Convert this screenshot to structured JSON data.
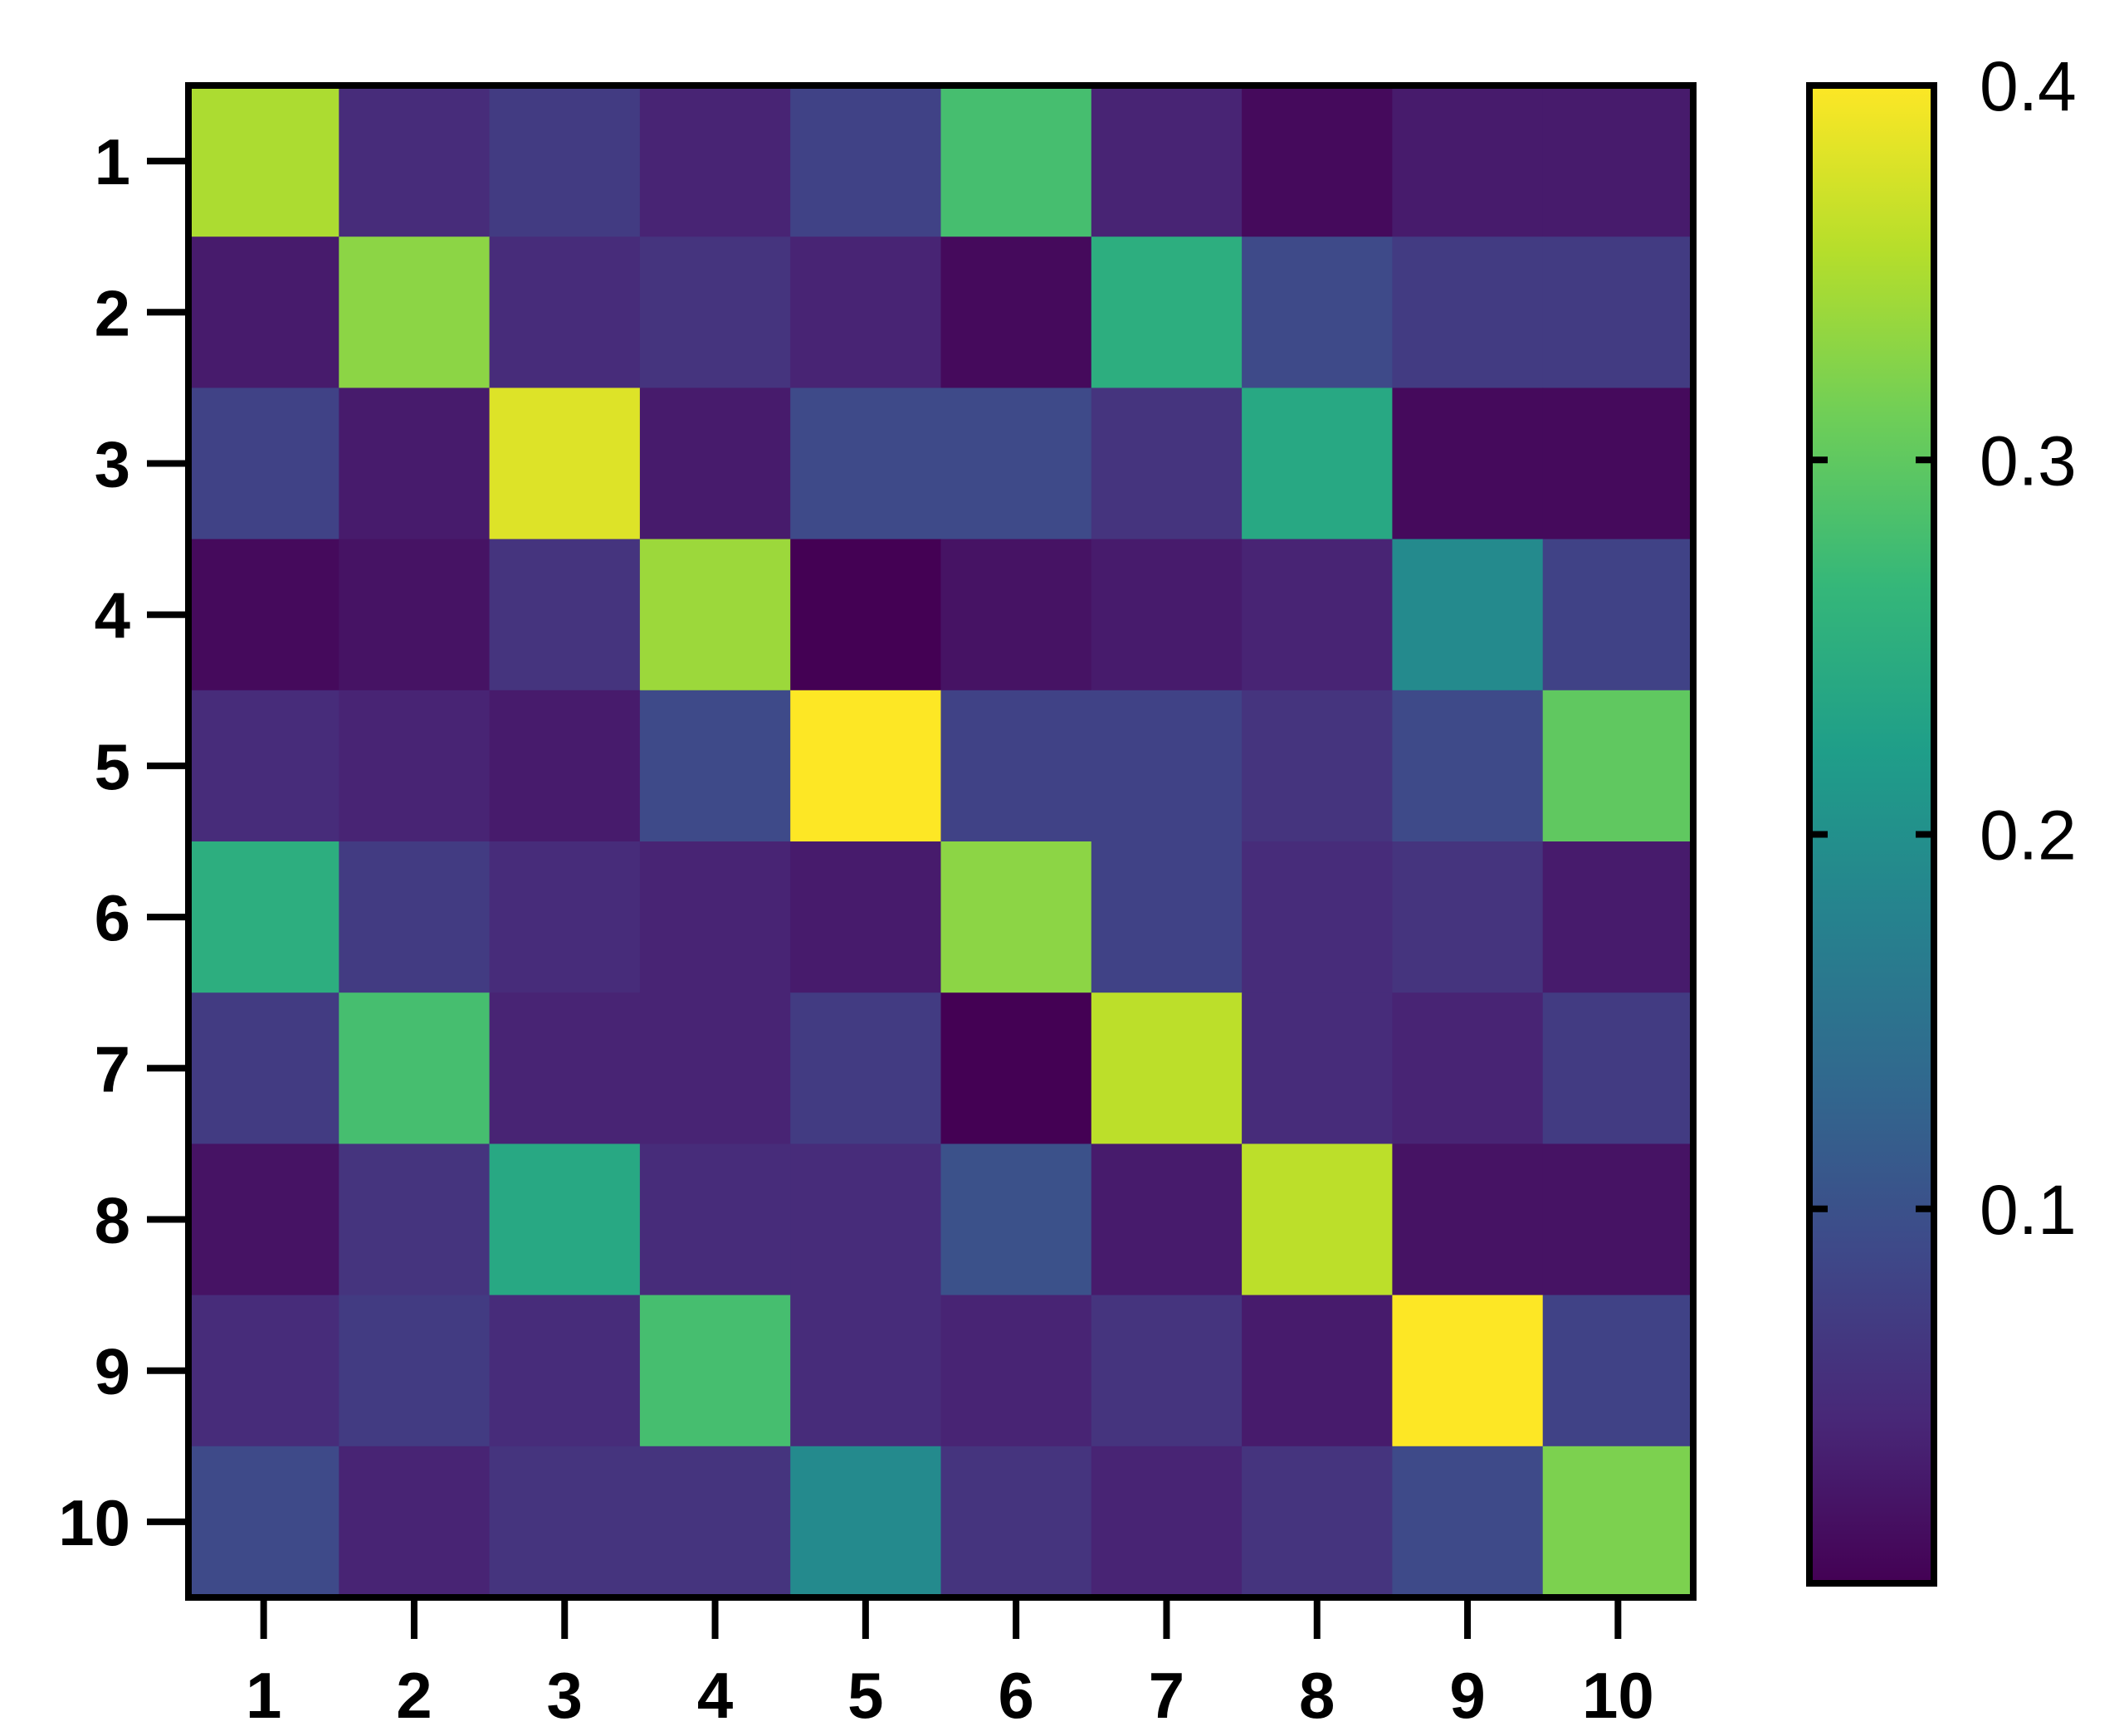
{
  "chart_data": {
    "type": "heatmap",
    "title": "",
    "xlabel": "",
    "ylabel": "",
    "x_categories": [
      "1",
      "2",
      "3",
      "4",
      "5",
      "6",
      "7",
      "8",
      "9",
      "10"
    ],
    "y_categories": [
      "1",
      "2",
      "3",
      "4",
      "5",
      "6",
      "7",
      "8",
      "9",
      "10"
    ],
    "values": [
      [
        0.35,
        0.05,
        0.07,
        0.04,
        0.08,
        0.28,
        0.04,
        0.01,
        0.03,
        0.03
      ],
      [
        0.03,
        0.33,
        0.05,
        0.06,
        0.04,
        0.01,
        0.25,
        0.09,
        0.07,
        0.07
      ],
      [
        0.08,
        0.03,
        0.38,
        0.03,
        0.09,
        0.09,
        0.06,
        0.24,
        0.01,
        0.01
      ],
      [
        0.01,
        0.02,
        0.06,
        0.34,
        0.0,
        0.02,
        0.03,
        0.04,
        0.19,
        0.08
      ],
      [
        0.05,
        0.04,
        0.03,
        0.09,
        0.4,
        0.08,
        0.08,
        0.06,
        0.09,
        0.3
      ],
      [
        0.25,
        0.07,
        0.05,
        0.04,
        0.03,
        0.33,
        0.08,
        0.05,
        0.06,
        0.03
      ],
      [
        0.07,
        0.28,
        0.04,
        0.04,
        0.07,
        0.0,
        0.36,
        0.05,
        0.04,
        0.07
      ],
      [
        0.02,
        0.06,
        0.24,
        0.05,
        0.05,
        0.1,
        0.03,
        0.36,
        0.02,
        0.02
      ],
      [
        0.05,
        0.07,
        0.05,
        0.28,
        0.05,
        0.04,
        0.06,
        0.03,
        0.41,
        0.08
      ],
      [
        0.09,
        0.04,
        0.06,
        0.06,
        0.19,
        0.06,
        0.04,
        0.06,
        0.09,
        0.32
      ]
    ],
    "colormap": "viridis",
    "colorbar": {
      "range": [
        0.0,
        0.4
      ],
      "ticks": [
        0.1,
        0.2,
        0.3,
        0.4
      ],
      "tick_labels": [
        "0.1",
        "0.2",
        "0.3",
        "0.4"
      ]
    },
    "colors": {
      "viridis_stops": [
        "#440154",
        "#482878",
        "#3e4989",
        "#31688e",
        "#26828e",
        "#1f9e89",
        "#35b779",
        "#6ece58",
        "#b5de2b",
        "#fde725"
      ],
      "axis": "#000000",
      "background": "#ffffff"
    },
    "grid": false
  }
}
